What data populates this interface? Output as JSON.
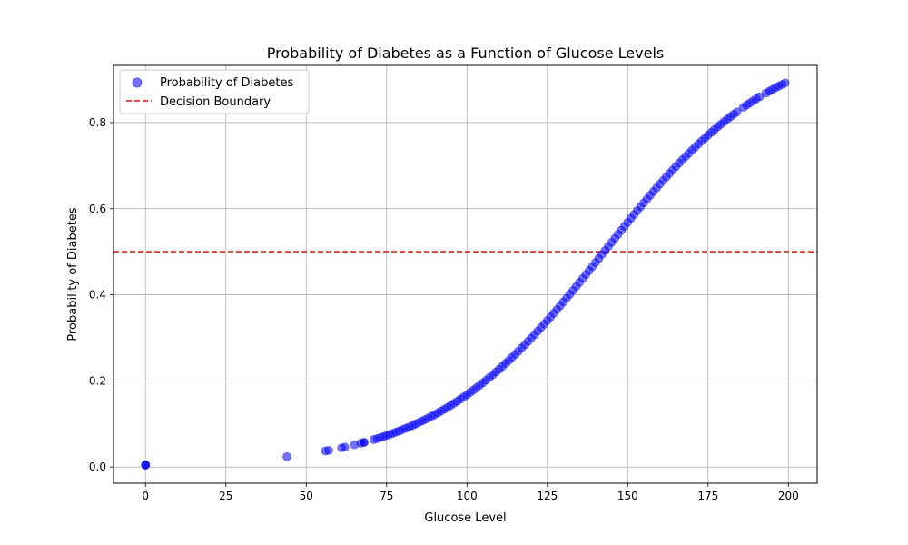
{
  "chart_data": {
    "type": "scatter",
    "title": "Probability of Diabetes as a Function of Glucose Levels",
    "xlabel": "Glucose Level",
    "ylabel": "Probability of Diabetes",
    "xlim": [
      -9.95,
      208.95
    ],
    "ylim": [
      -0.0376,
      0.9328
    ],
    "xticks": [
      0,
      25,
      50,
      75,
      100,
      125,
      150,
      175,
      200
    ],
    "yticks": [
      0.0,
      0.2,
      0.4,
      0.6,
      0.8
    ],
    "ytick_labels": [
      "0.0",
      "0.2",
      "0.4",
      "0.6",
      "0.8"
    ],
    "grid": true,
    "legend": {
      "placement": "upper-left",
      "entries": [
        "Probability of Diabetes",
        "Decision Boundary"
      ]
    },
    "series": [
      {
        "name": "Probability of Diabetes",
        "kind": "scatter",
        "color": "#0000ff",
        "alpha": 0.55,
        "logistic_model": {
          "intercept": -5.35,
          "slope": 0.0375
        },
        "x": [
          0,
          0,
          0,
          44,
          56,
          57,
          61,
          62,
          65,
          67,
          68,
          68,
          71,
          72,
          73,
          74,
          75,
          76,
          77,
          78,
          79,
          80,
          81,
          82,
          83,
          84,
          85,
          86,
          87,
          88,
          89,
          90,
          91,
          92,
          93,
          94,
          95,
          96,
          97,
          98,
          99,
          100,
          101,
          102,
          103,
          104,
          105,
          106,
          107,
          108,
          109,
          110,
          111,
          112,
          113,
          114,
          115,
          116,
          117,
          118,
          119,
          120,
          121,
          122,
          123,
          124,
          125,
          126,
          127,
          128,
          129,
          130,
          131,
          132,
          133,
          134,
          135,
          136,
          137,
          138,
          139,
          140,
          141,
          142,
          143,
          144,
          145,
          146,
          147,
          148,
          149,
          150,
          151,
          152,
          153,
          154,
          155,
          156,
          157,
          158,
          159,
          160,
          161,
          162,
          163,
          164,
          165,
          166,
          167,
          168,
          169,
          170,
          171,
          172,
          173,
          174,
          175,
          176,
          177,
          178,
          179,
          180,
          181,
          182,
          183,
          184,
          186,
          187,
          188,
          189,
          190,
          191,
          193,
          194,
          195,
          196,
          197,
          198,
          199
        ]
      },
      {
        "name": "Decision Boundary",
        "kind": "hline",
        "y": 0.5,
        "color": "#ff0000",
        "linestyle": "dashed"
      }
    ]
  }
}
